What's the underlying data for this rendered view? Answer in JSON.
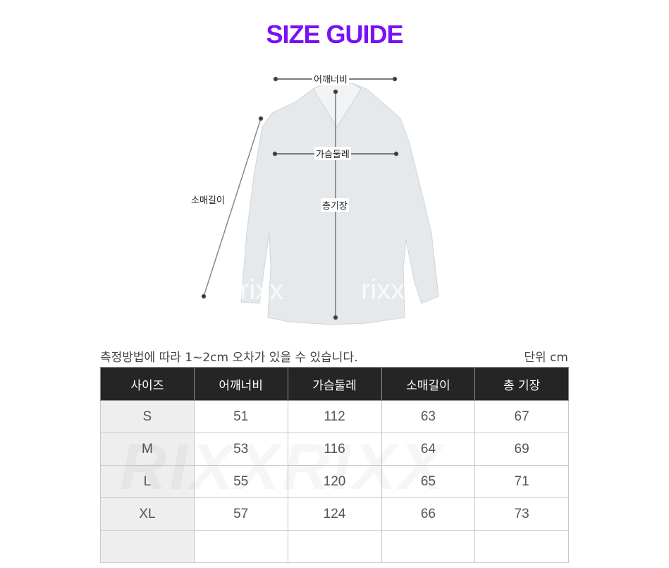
{
  "title": "SIZE GUIDE",
  "diagram": {
    "shoulder": "어깨너비",
    "chest": "가슴둘레",
    "sleeve": "소매길이",
    "length": "총기장",
    "watermark": "rixx"
  },
  "note": "측정방법에 따라 1~2cm 오차가 있을 수 있습니다.",
  "unit": "단위 cm",
  "table": {
    "headers": [
      "사이즈",
      "어깨너비",
      "가슴둘레",
      "소매길이",
      "총 기장"
    ],
    "rows": [
      [
        "S",
        "51",
        "112",
        "63",
        "67"
      ],
      [
        "M",
        "53",
        "116",
        "64",
        "69"
      ],
      [
        "L",
        "55",
        "120",
        "65",
        "71"
      ],
      [
        "XL",
        "57",
        "124",
        "66",
        "73"
      ],
      [
        "",
        "",
        "",
        "",
        ""
      ]
    ]
  },
  "table_watermark": "RIXXRIXX",
  "colors": {
    "title": "#7a10f5",
    "header_bg": "#252525",
    "size_col_bg": "#eeeeee"
  }
}
